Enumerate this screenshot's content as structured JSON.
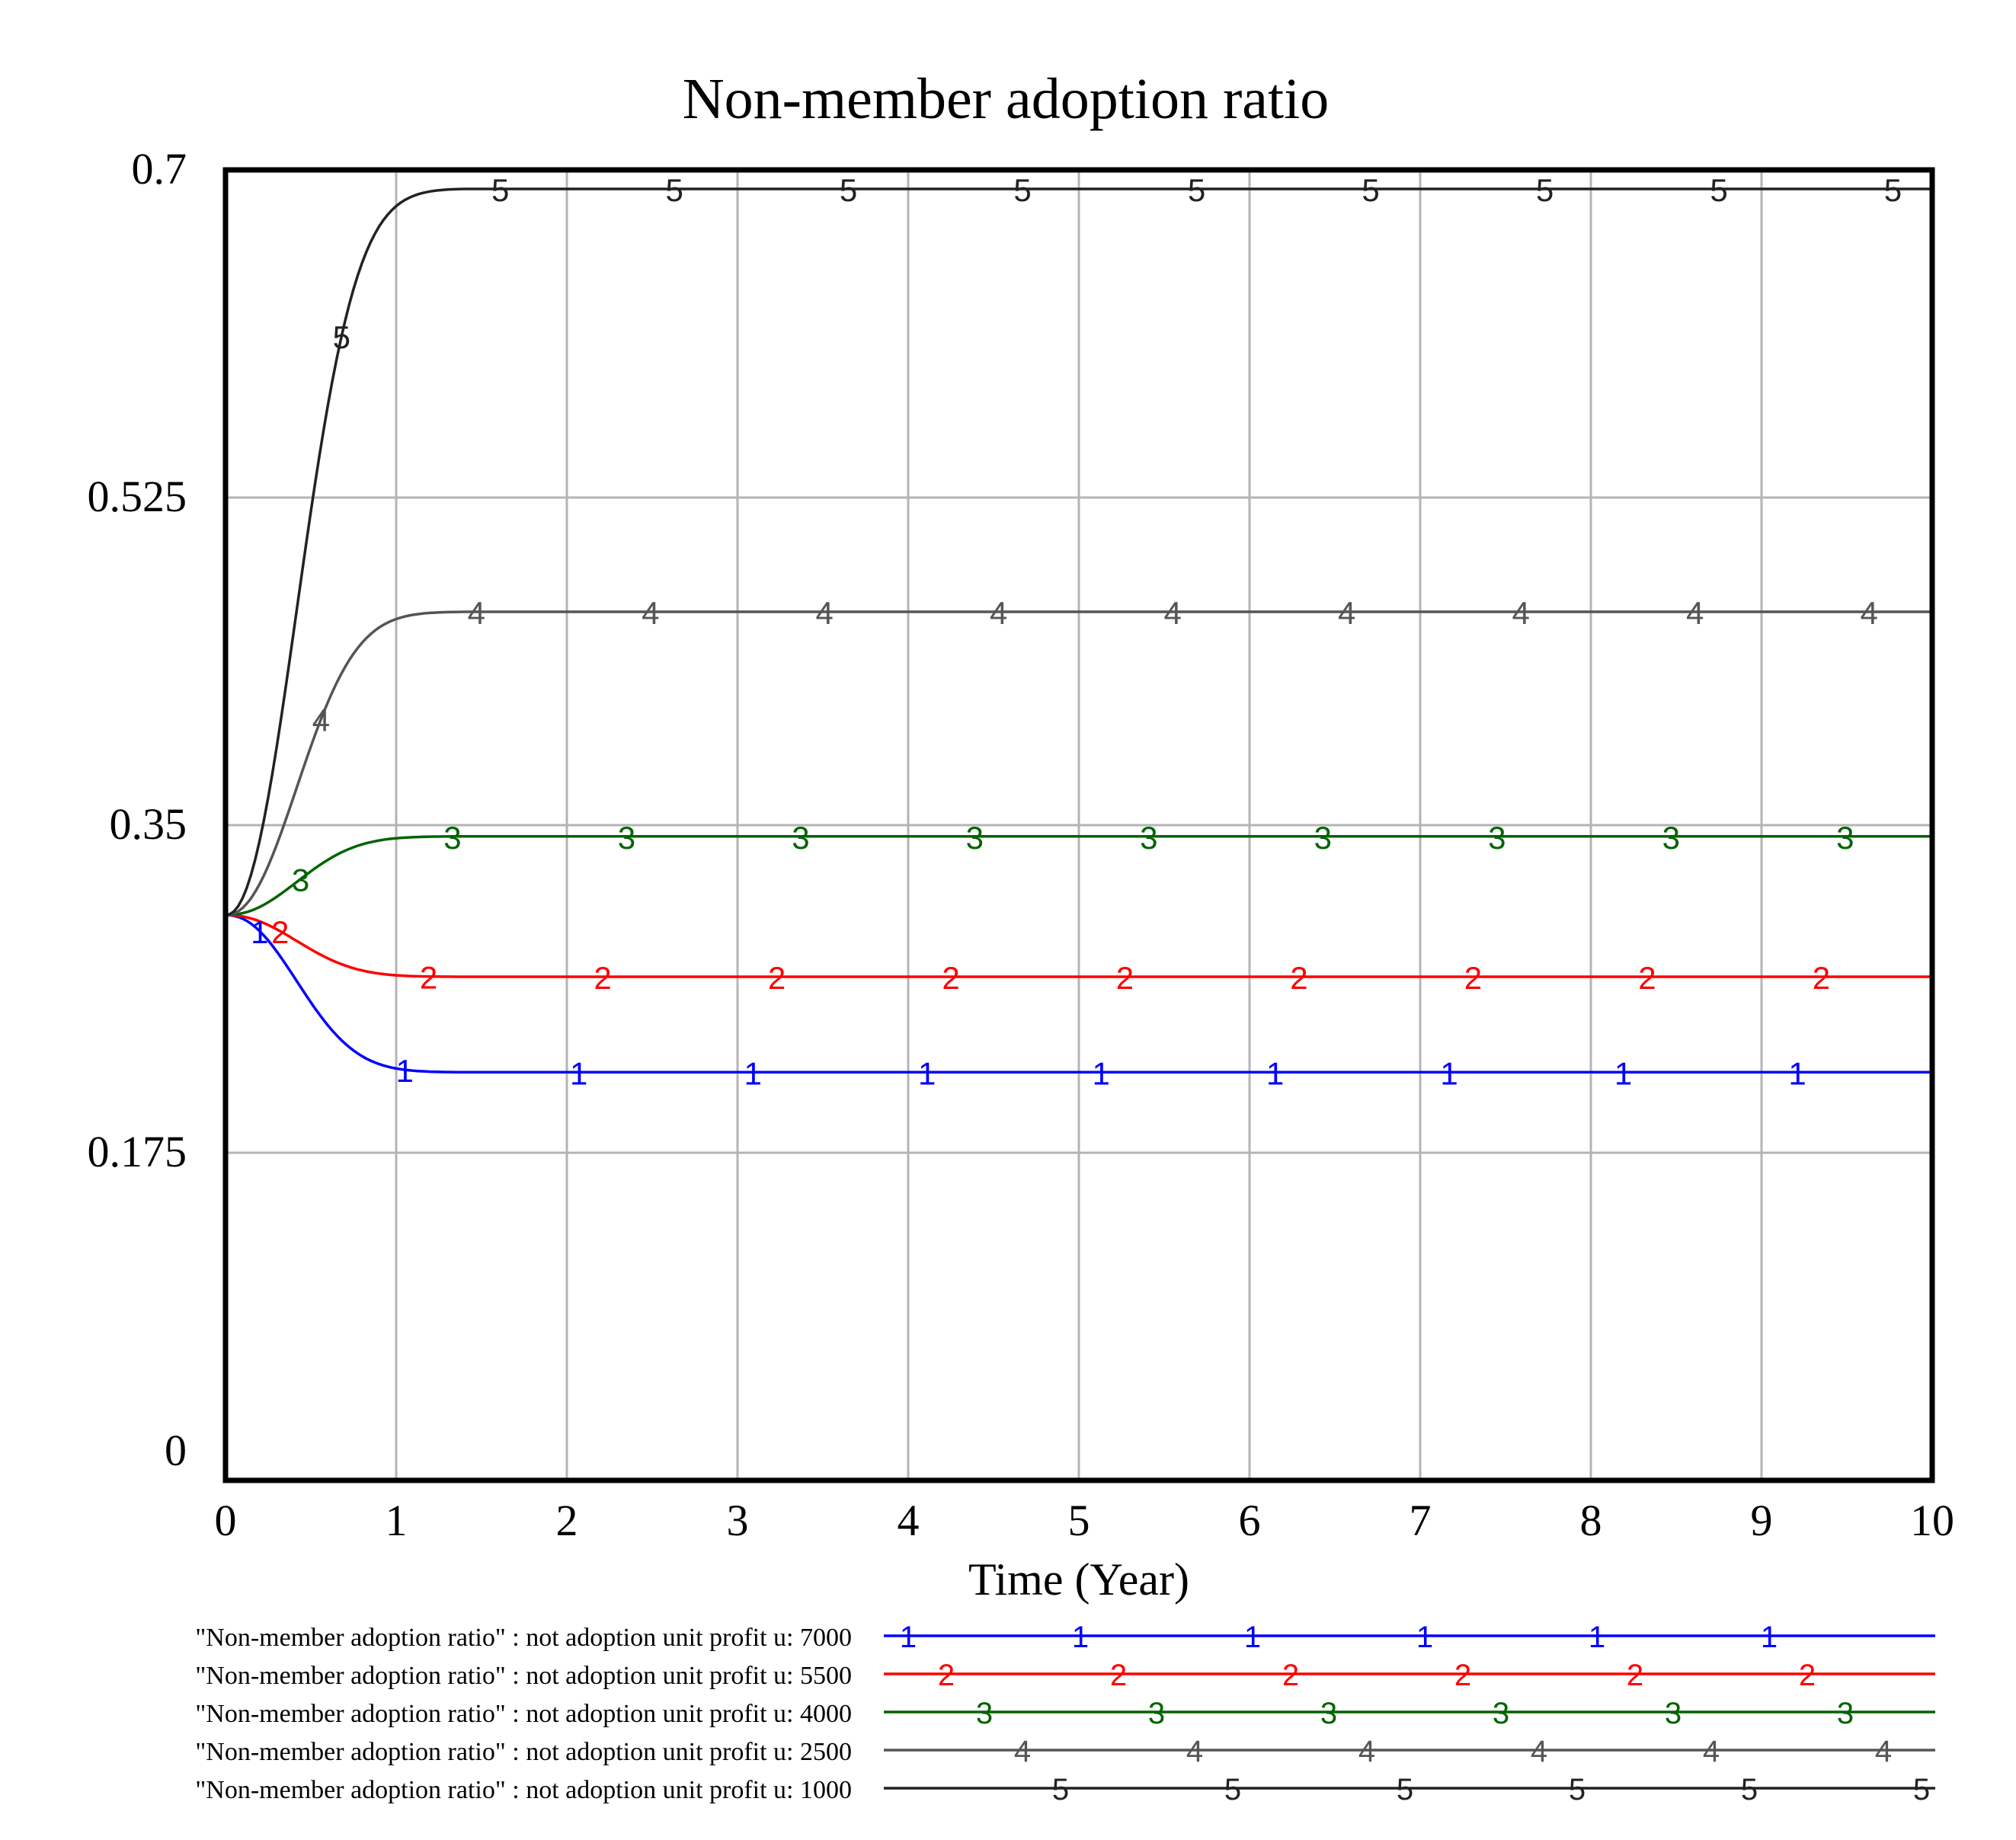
{
  "chart_data": {
    "type": "line",
    "title": "Non-member adoption ratio",
    "xlabel": "Time (Year)",
    "ylabel": "",
    "xlim": [
      0,
      10
    ],
    "ylim": [
      0,
      0.7
    ],
    "x_ticks": [
      "0",
      "1",
      "2",
      "3",
      "4",
      "5",
      "6",
      "7",
      "8",
      "9",
      "10"
    ],
    "y_ticks": [
      "0",
      "0.175",
      "0.35",
      "0.525",
      "0.7"
    ],
    "grid": true,
    "legend_position": "bottom",
    "series": [
      {
        "marker": "1",
        "name": "\"Non-member adoption ratio\" : not adoption unit profit u: 7000",
        "color": "#0000ff",
        "start": 0.302,
        "final": 0.218,
        "rate": 4.0
      },
      {
        "marker": "2",
        "name": "\"Non-member adoption ratio\" : not adoption unit profit u: 5500",
        "color": "#ff0000",
        "start": 0.302,
        "final": 0.269,
        "rate": 4.0
      },
      {
        "marker": "3",
        "name": "\"Non-member adoption ratio\" : not adoption unit profit u: 4000",
        "color": "#006400",
        "start": 0.302,
        "final": 0.344,
        "rate": 4.0
      },
      {
        "marker": "4",
        "name": "\"Non-member adoption ratio\" : not adoption unit profit u: 2500",
        "color": "#555555",
        "start": 0.302,
        "final": 0.464,
        "rate": 4.0
      },
      {
        "marker": "5",
        "name": "\"Non-member adoption ratio\" : not adoption unit profit u: 1000",
        "color": "#222222",
        "start": 0.302,
        "final": 0.69,
        "rate": 4.0
      }
    ]
  }
}
